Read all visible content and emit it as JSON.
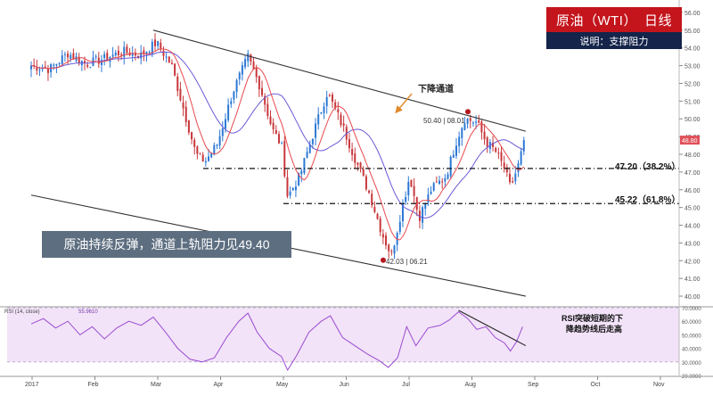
{
  "header": {
    "instrument": "原油（WTI）",
    "timeframe": "日线",
    "subtitle": "说明：支撑阻力"
  },
  "callout": "原油持续反弹，通道上轨阻力见49.40",
  "annotations": {
    "channel_label": "下降通道",
    "high_label": "50.40 | 08.01",
    "low_label": "42.03 | 06.21",
    "level1_label": "47.20（38.2%）",
    "level2_label": "45.22（61.8%）",
    "rsi_note_line1": "RSI突破短期的下",
    "rsi_note_line2": "降趋势线后走高",
    "rsi_indicator_label": "RSI (14, close)",
    "rsi_value_label": "55.9610"
  },
  "colors": {
    "up": "#2c78d4",
    "down": "#c8373b",
    "ma_fast": "#e8484d",
    "ma_slow": "#6a5ad6",
    "rsi_line": "#9b4bd0",
    "rsi_band": "#f2e3f8",
    "channel": "#333333",
    "title_bg": "#c4141c",
    "subtitle_bg": "#14244a",
    "callout_bg": "#5d6e80",
    "last_price_bg": "#e0505a"
  },
  "chart_data": [
    {
      "type": "candlestick",
      "x_ticks": [
        "2017",
        "Feb",
        "Mar",
        "Apr",
        "May",
        "Jun",
        "Jul",
        "Aug",
        "Sep",
        "Oct",
        "Nov"
      ],
      "ylim": [
        39.5,
        56.5
      ],
      "y_ticks": [
        "56.00",
        "55.00",
        "54.00",
        "53.00",
        "52.00",
        "51.00",
        "50.00",
        "49.00",
        "48.00",
        "47.00",
        "46.00",
        "45.00",
        "44.00",
        "43.00",
        "42.00",
        "41.00",
        "40.00"
      ],
      "last_price": "48.80",
      "levels": [
        {
          "label": "47.20（38.2%）",
          "value": 47.2
        },
        {
          "label": "45.22（61.8%）",
          "value": 45.22
        }
      ],
      "channel": {
        "upper": [
          [
            2.0,
            55.0
          ],
          [
            8.1,
            49.3
          ]
        ],
        "lower": [
          [
            0.0,
            45.7
          ],
          [
            8.1,
            40.0
          ]
        ]
      },
      "anchors": [
        {
          "x": 0.0,
          "y": 53.0
        },
        {
          "x": 0.3,
          "y": 52.8
        },
        {
          "x": 0.6,
          "y": 53.7
        },
        {
          "x": 0.9,
          "y": 53.1
        },
        {
          "x": 1.2,
          "y": 53.4
        },
        {
          "x": 1.5,
          "y": 53.8
        },
        {
          "x": 1.8,
          "y": 53.6
        },
        {
          "x": 2.05,
          "y": 54.3
        },
        {
          "x": 2.3,
          "y": 53.0
        },
        {
          "x": 2.5,
          "y": 50.5
        },
        {
          "x": 2.7,
          "y": 48.0
        },
        {
          "x": 2.85,
          "y": 47.6
        },
        {
          "x": 3.05,
          "y": 48.6
        },
        {
          "x": 3.3,
          "y": 51.5
        },
        {
          "x": 3.55,
          "y": 53.5
        },
        {
          "x": 3.75,
          "y": 51.8
        },
        {
          "x": 3.95,
          "y": 49.4
        },
        {
          "x": 4.1,
          "y": 48.5
        },
        {
          "x": 4.2,
          "y": 45.6
        },
        {
          "x": 4.4,
          "y": 46.8
        },
        {
          "x": 4.65,
          "y": 49.5
        },
        {
          "x": 4.85,
          "y": 51.5
        },
        {
          "x": 5.1,
          "y": 49.6
        },
        {
          "x": 5.3,
          "y": 47.8
        },
        {
          "x": 5.55,
          "y": 45.7
        },
        {
          "x": 5.75,
          "y": 43.5
        },
        {
          "x": 5.9,
          "y": 42.3
        },
        {
          "x": 6.05,
          "y": 44.6
        },
        {
          "x": 6.2,
          "y": 46.8
        },
        {
          "x": 6.35,
          "y": 44.4
        },
        {
          "x": 6.55,
          "y": 46.0
        },
        {
          "x": 6.8,
          "y": 46.8
        },
        {
          "x": 6.95,
          "y": 48.6
        },
        {
          "x": 7.1,
          "y": 50.0
        },
        {
          "x": 7.3,
          "y": 49.8
        },
        {
          "x": 7.45,
          "y": 48.7
        },
        {
          "x": 7.6,
          "y": 48.2
        },
        {
          "x": 7.75,
          "y": 47.2
        },
        {
          "x": 7.85,
          "y": 46.1
        },
        {
          "x": 8.0,
          "y": 47.6
        },
        {
          "x": 8.07,
          "y": 48.8
        }
      ]
    },
    {
      "type": "line",
      "name": "RSI (14, close)",
      "ylim": [
        20,
        70
      ],
      "y_ticks": [
        "70.0000",
        "60.0000",
        "50.0000",
        "40.0000",
        "30.0000",
        "20.0000"
      ],
      "band": [
        30,
        70
      ],
      "last_value": "55.9610",
      "points": [
        [
          0.0,
          58
        ],
        [
          0.2,
          62
        ],
        [
          0.4,
          55
        ],
        [
          0.6,
          60
        ],
        [
          0.8,
          50
        ],
        [
          1.0,
          56
        ],
        [
          1.2,
          47
        ],
        [
          1.4,
          55
        ],
        [
          1.6,
          60
        ],
        [
          1.8,
          57
        ],
        [
          2.0,
          63
        ],
        [
          2.2,
          52
        ],
        [
          2.4,
          40
        ],
        [
          2.6,
          32
        ],
        [
          2.8,
          30
        ],
        [
          3.0,
          33
        ],
        [
          3.2,
          48
        ],
        [
          3.4,
          60
        ],
        [
          3.55,
          66
        ],
        [
          3.7,
          52
        ],
        [
          3.9,
          40
        ],
        [
          4.1,
          34
        ],
        [
          4.2,
          24
        ],
        [
          4.35,
          35
        ],
        [
          4.55,
          52
        ],
        [
          4.75,
          60
        ],
        [
          4.9,
          64
        ],
        [
          5.1,
          48
        ],
        [
          5.3,
          42
        ],
        [
          5.5,
          36
        ],
        [
          5.7,
          31
        ],
        [
          5.85,
          26
        ],
        [
          6.0,
          33
        ],
        [
          6.15,
          56
        ],
        [
          6.3,
          42
        ],
        [
          6.5,
          55
        ],
        [
          6.7,
          57
        ],
        [
          6.85,
          61
        ],
        [
          7.0,
          67
        ],
        [
          7.15,
          62
        ],
        [
          7.3,
          54
        ],
        [
          7.45,
          56
        ],
        [
          7.6,
          48
        ],
        [
          7.75,
          44
        ],
        [
          7.85,
          38
        ],
        [
          7.95,
          45
        ],
        [
          8.05,
          55.96
        ]
      ],
      "trendline": [
        [
          7.0,
          68
        ],
        [
          8.1,
          42
        ]
      ]
    }
  ]
}
